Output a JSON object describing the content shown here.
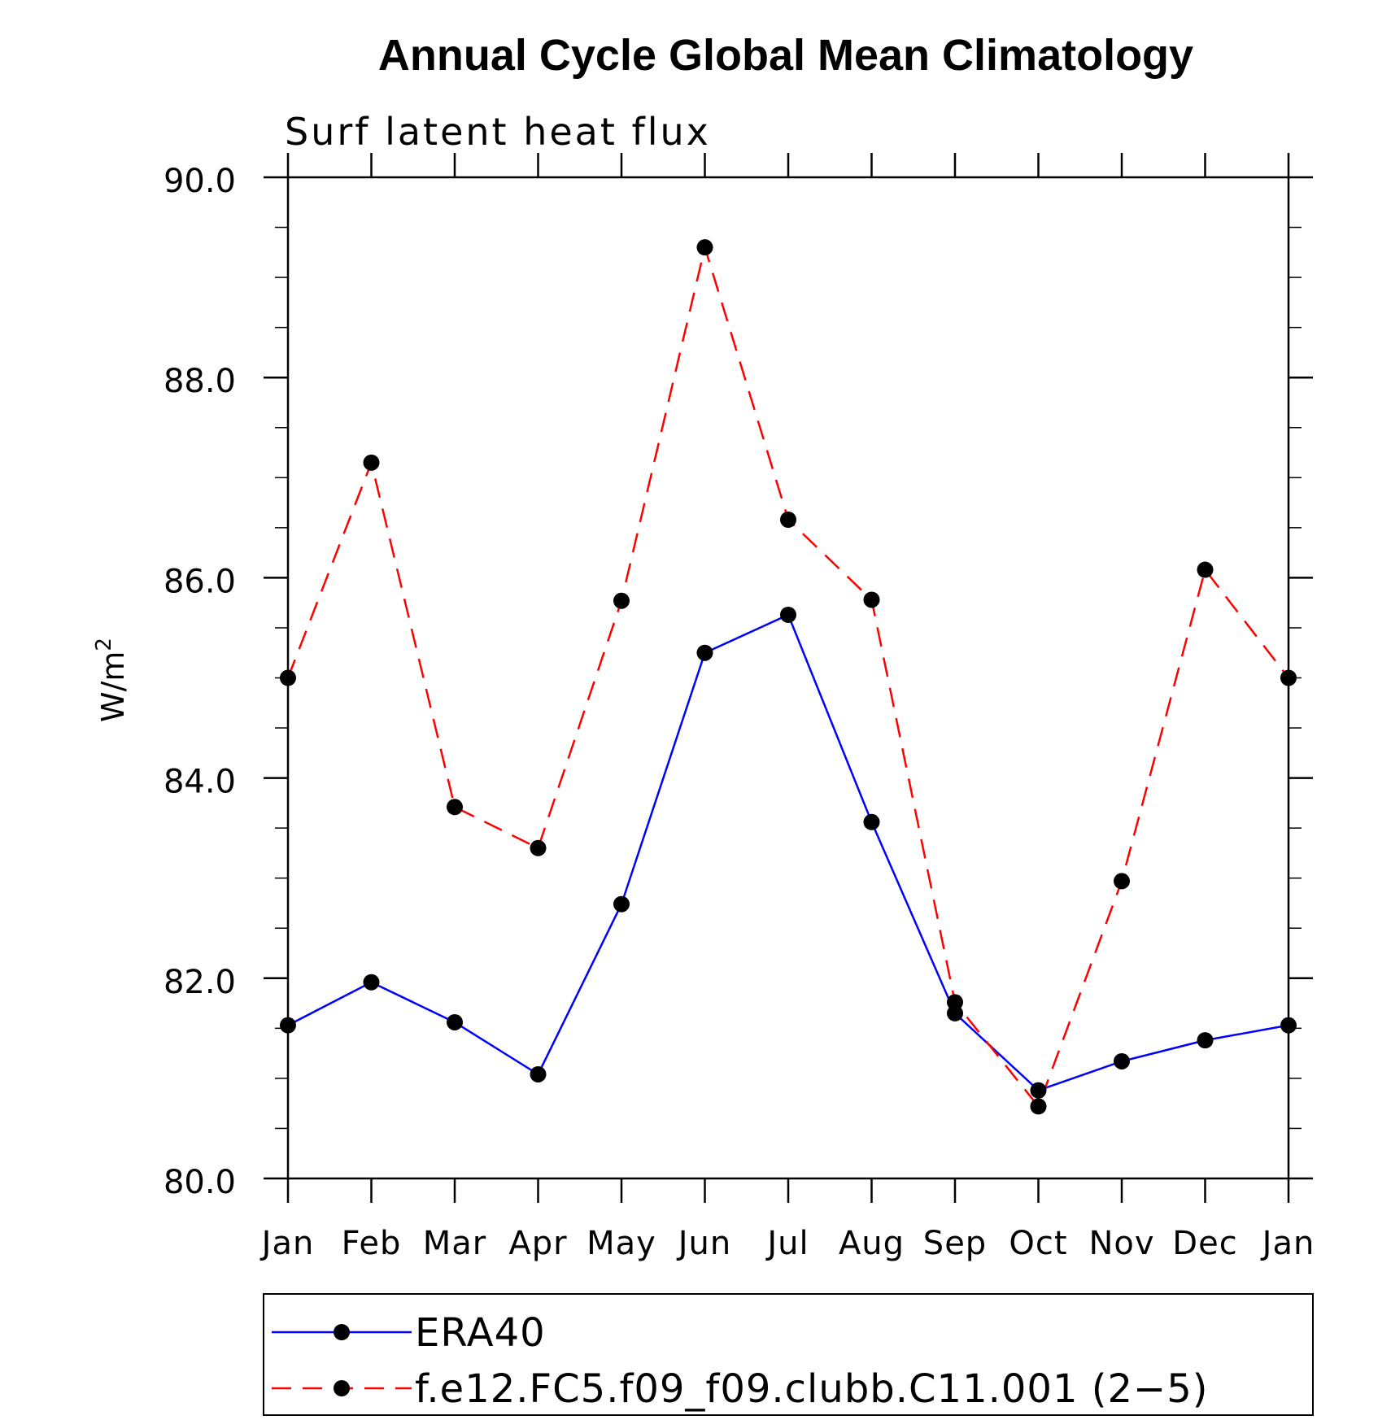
{
  "chart_data": {
    "type": "line",
    "title": "Annual Cycle Global Mean Climatology",
    "subtitle": "Surf latent heat flux",
    "ylabel": "W/m",
    "ylabel_sup": "2",
    "xlabel": "",
    "categories": [
      "Jan",
      "Feb",
      "Mar",
      "Apr",
      "May",
      "Jun",
      "Jul",
      "Aug",
      "Sep",
      "Oct",
      "Nov",
      "Dec",
      "Jan"
    ],
    "ylim": [
      80.0,
      90.0
    ],
    "yticks": [
      "80.0",
      "82.0",
      "84.0",
      "86.0",
      "88.0",
      "90.0"
    ],
    "ytick_values": [
      80,
      82,
      84,
      86,
      88,
      90
    ],
    "grid": false,
    "legend_position": "bottom",
    "series": [
      {
        "name": "ERA40",
        "color": "#0000ff",
        "dash": "solid",
        "values": [
          81.53,
          81.96,
          81.56,
          81.04,
          82.74,
          85.25,
          85.63,
          83.56,
          81.65,
          80.88,
          81.17,
          81.38,
          81.53
        ]
      },
      {
        "name": "f.e12.FC5.f09_f09.clubb.C11.001 (2−5)",
        "color": "#ff0000",
        "dash": "dashed",
        "values": [
          85.0,
          87.15,
          83.71,
          83.3,
          85.77,
          89.3,
          86.58,
          85.78,
          81.76,
          80.72,
          82.97,
          86.08,
          85.0
        ]
      }
    ]
  }
}
